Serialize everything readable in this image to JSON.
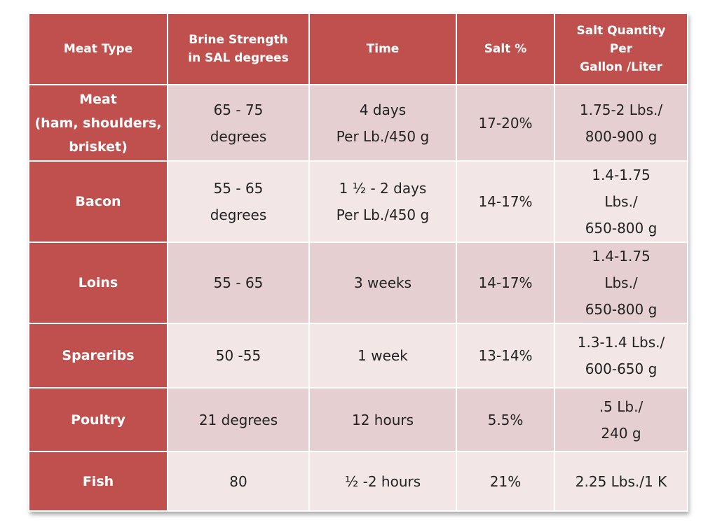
{
  "table": {
    "header": [
      [
        "Meat Type"
      ],
      [
        "Brine Strength",
        "in SAL degrees"
      ],
      [
        "Time"
      ],
      [
        "Salt %"
      ],
      [
        "Salt Quantity",
        "Per",
        "Gallon /Liter"
      ]
    ],
    "rows": [
      [
        [
          "Meat",
          "(ham, shoulders,",
          "brisket)"
        ],
        [
          "65 - 75",
          "degrees"
        ],
        [
          "4 days",
          "Per Lb./450 g"
        ],
        [
          "17-20%"
        ],
        [
          "1.75-2 Lbs./",
          "800-900 g"
        ]
      ],
      [
        [
          "Bacon"
        ],
        [
          "55 - 65",
          "degrees"
        ],
        [
          "1 ½ - 2 days",
          "Per Lb./450 g"
        ],
        [
          "14-17%"
        ],
        [
          "1.4-1.75",
          "Lbs./",
          "650-800 g"
        ]
      ],
      [
        [
          "Loins"
        ],
        [
          "55 - 65"
        ],
        [
          "3 weeks"
        ],
        [
          "14-17%"
        ],
        [
          "1.4-1.75",
          "Lbs./",
          "650-800 g"
        ]
      ],
      [
        [
          "Spareribs"
        ],
        [
          "50 -55"
        ],
        [
          "1 week"
        ],
        [
          "13-14%"
        ],
        [
          "1.3-1.4 Lbs./",
          "600-650 g"
        ]
      ],
      [
        [
          "Poultry"
        ],
        [
          "21 degrees"
        ],
        [
          "12 hours"
        ],
        [
          "5.5%"
        ],
        [
          ".5 Lb./",
          "240 g"
        ]
      ],
      [
        [
          "Fish"
        ],
        [
          "80"
        ],
        [
          "½ -2 hours"
        ],
        [
          "21%"
        ],
        [
          "2.25 Lbs./1 K"
        ]
      ]
    ]
  }
}
